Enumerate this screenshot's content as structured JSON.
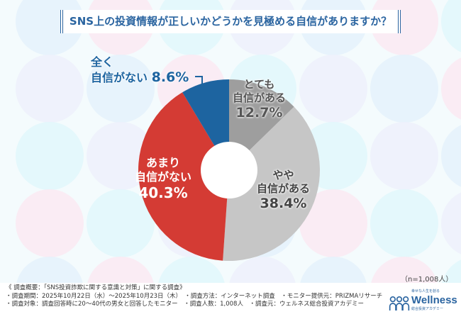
{
  "title": "SNS上の投資情報が正しいかどうかを見極める自信がありますか？",
  "chart_data": {
    "type": "pie",
    "title": "SNS上の投資情報が正しいかどうかを見極める自信がありますか？",
    "donut": true,
    "categories": [
      "とても自信がある",
      "やや自信がある",
      "あまり自信がない",
      "全く自信がない"
    ],
    "values": [
      12.7,
      38.4,
      40.3,
      8.6
    ],
    "colors": [
      "#9e9e9e",
      "#c6c6c6",
      "#d43b34",
      "#1d64a0"
    ],
    "labels": [
      {
        "line1": "とても",
        "line2": "自信がある",
        "pct": "12.7%"
      },
      {
        "line1": "やや",
        "line2": "自信がある",
        "pct": "38.4%"
      },
      {
        "line1": "あまり",
        "line2": "自信がない",
        "pct": "40.3%"
      },
      {
        "line1": "全く",
        "line2": "自信がない",
        "pct": "8.6%"
      }
    ]
  },
  "sample": "（n=1,008人）",
  "footer": [
    "《 調査概要：「SNS投資詐欺に関する意識と対策」に関する調査》",
    "・調査期間：2025年10月22日（水）～2025年10月23日（木）　・調査方法：インターネット調査　・モニター提供元：PRIZMAリサーチ",
    "・調査対象：調査回答時に20～40代の男女と回答したモニター　・調査人数：1,008人　・調査元：ウェルネス総合投資アカデミー"
  ],
  "logo": {
    "name": "Wellness",
    "tagline": "幸せな人生を創る",
    "sub": "総合投資アカデミー"
  }
}
